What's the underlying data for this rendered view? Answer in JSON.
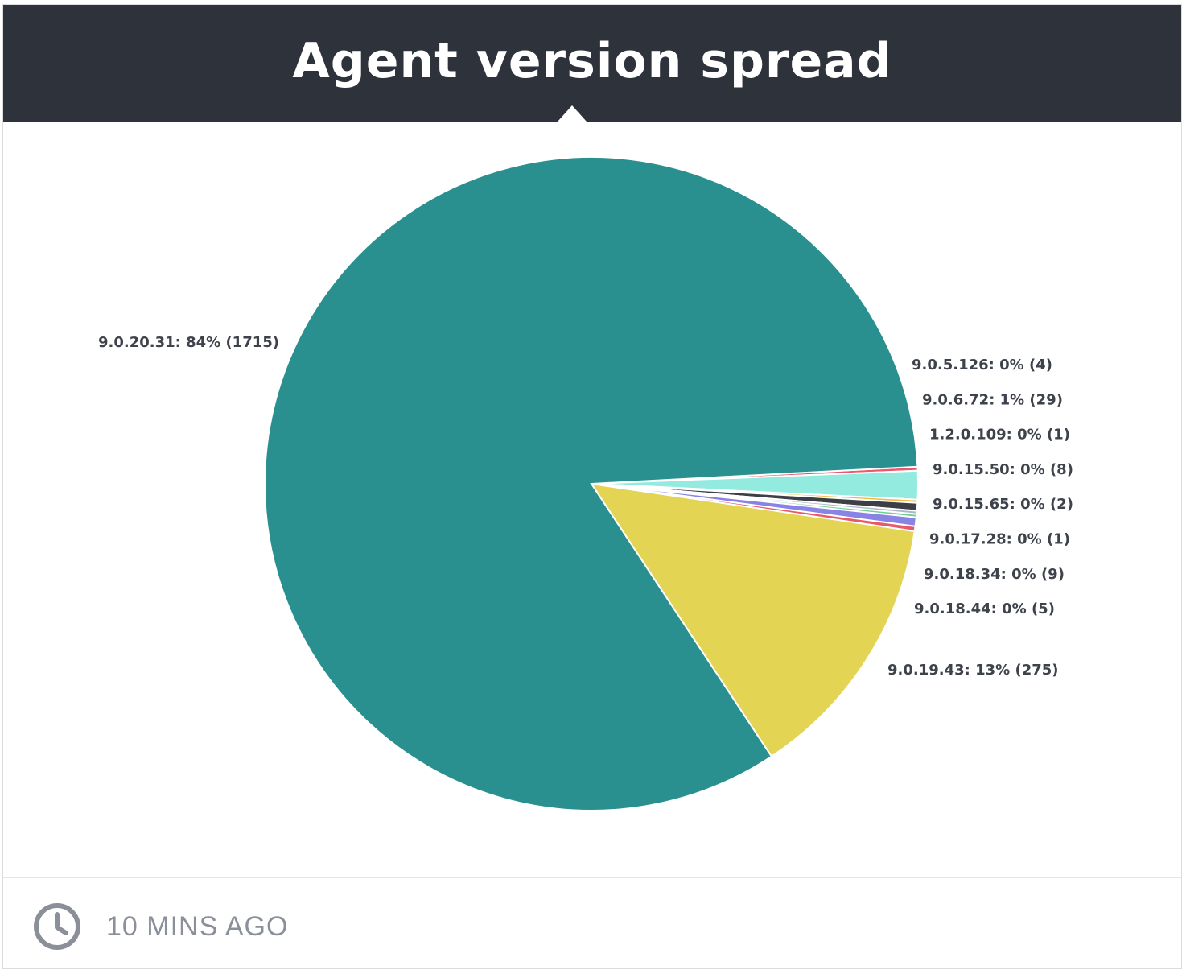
{
  "widget": {
    "title": "Agent version spread",
    "updated": "10 MINS AGO",
    "icons": {
      "clock": "clock-icon"
    }
  },
  "chart_data": {
    "type": "pie",
    "slices": [
      {
        "name": "9.0.5.126",
        "percent_label": "0%",
        "value": 4,
        "color": "#e8596b",
        "label": "9.0.5.126: 0% (4)"
      },
      {
        "name": "9.0.6.72",
        "percent_label": "1%",
        "value": 29,
        "color": "#93ebe0",
        "label": "9.0.6.72: 1% (29)"
      },
      {
        "name": "1.2.0.109",
        "percent_label": "0%",
        "value": 1,
        "color": "#f4b942",
        "label": "1.2.0.109: 0% (1)"
      },
      {
        "name": "9.0.15.50",
        "percent_label": "0%",
        "value": 8,
        "color": "#3d3f46",
        "label": "9.0.15.50: 0% (8)"
      },
      {
        "name": "9.0.15.65",
        "percent_label": "0%",
        "value": 2,
        "color": "#b0b7c4",
        "label": "9.0.15.65: 0% (2)"
      },
      {
        "name": "9.0.17.28",
        "percent_label": "0%",
        "value": 1,
        "color": "#6fcf97",
        "label": "9.0.17.28: 0% (1)"
      },
      {
        "name": "9.0.18.34",
        "percent_label": "0%",
        "value": 9,
        "color": "#8a83e6",
        "label": "9.0.18.34: 0% (9)"
      },
      {
        "name": "9.0.18.44",
        "percent_label": "0%",
        "value": 5,
        "color": "#e8596b",
        "label": "9.0.18.44: 0% (5)"
      },
      {
        "name": "9.0.19.43",
        "percent_label": "13%",
        "value": 275,
        "color": "#e3d454",
        "label": "9.0.19.43: 13% (275)"
      },
      {
        "name": "9.0.20.31",
        "percent_label": "84%",
        "value": 1715,
        "color": "#2a908f",
        "label": "9.0.20.31: 84% (1715)"
      }
    ]
  }
}
